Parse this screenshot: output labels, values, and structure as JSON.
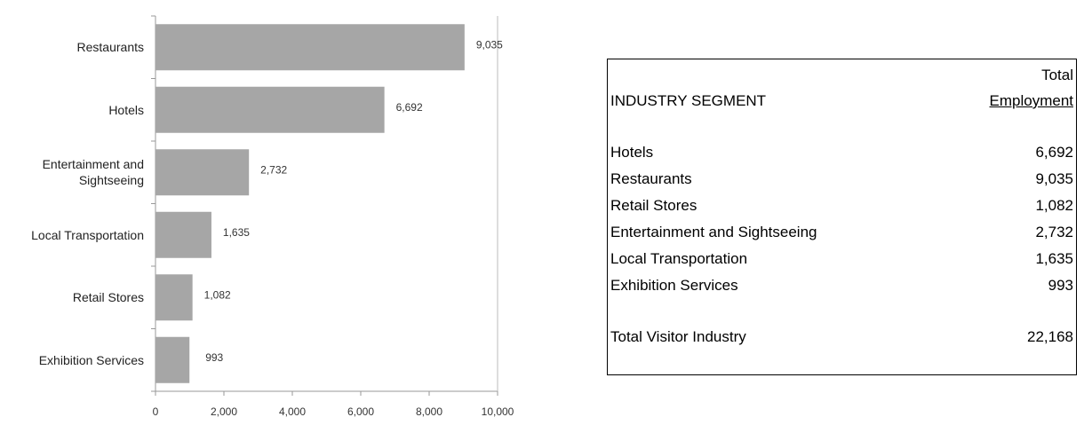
{
  "chart_data": {
    "type": "bar",
    "orientation": "horizontal",
    "categories": [
      "Restaurants",
      "Hotels",
      "Entertainment and Sightseeing",
      "Local Transportation",
      "Retail Stores",
      "Exhibition Services"
    ],
    "values": [
      9035,
      6692,
      2732,
      1635,
      1082,
      993
    ],
    "value_labels": [
      "9,035",
      "6,692",
      "2,732",
      "1,635",
      "1,082",
      "993"
    ],
    "color": "#a6a6a6",
    "xlim": [
      0,
      10000
    ],
    "xticks": [
      0,
      {
        "value": 2000,
        "label": "2,000"
      },
      {
        "value": 4000,
        "label": "4,000"
      },
      {
        "value": 6000,
        "label": "6,000"
      },
      {
        "value": 8000,
        "label": "8,000"
      },
      {
        "value": 10000,
        "label": "10,000"
      }
    ],
    "grid": false
  },
  "table": {
    "segment_header": "INDUSTRY SEGMENT",
    "total_header": [
      "Total",
      "Employment"
    ],
    "rows": [
      [
        "Hotels",
        "6,692"
      ],
      [
        "Restaurants",
        "9,035"
      ],
      [
        "Retail Stores",
        "1,082"
      ],
      [
        "Entertainment and Sightseeing",
        "2,732"
      ],
      [
        "Local Transportation",
        "1,635"
      ],
      [
        "Exhibition Services",
        "993"
      ]
    ],
    "total": [
      "Total Visitor Industry",
      "22,168"
    ]
  }
}
